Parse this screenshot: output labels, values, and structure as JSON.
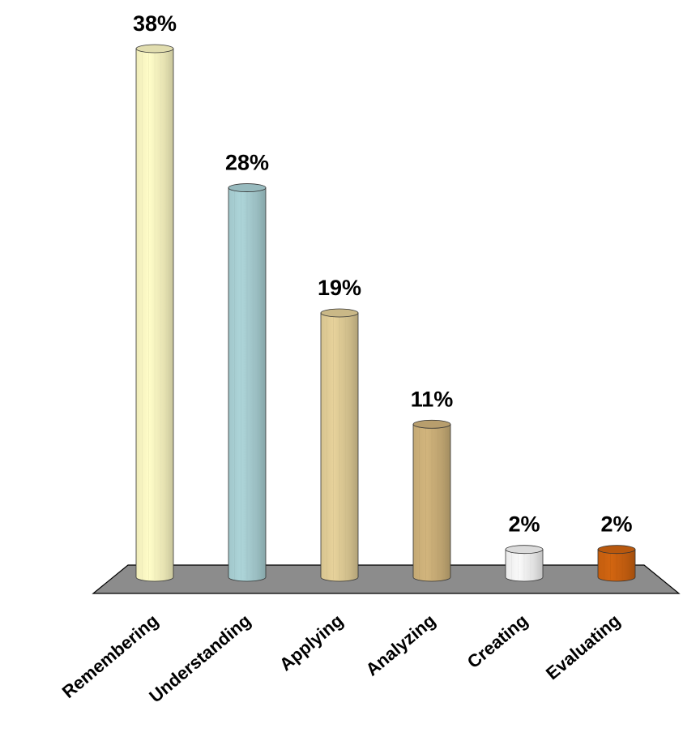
{
  "chart_data": {
    "type": "bar",
    "categories": [
      "Remembering",
      "Understanding",
      "Applying",
      "Analyzing",
      "Creating",
      "Evaluating"
    ],
    "values": [
      38,
      28,
      19,
      11,
      2,
      2
    ],
    "value_labels": [
      "38%",
      "28%",
      "19%",
      "11%",
      "2%",
      "2%"
    ],
    "ylim": [
      0,
      40
    ],
    "grid": false,
    "legend": "none",
    "colors": [
      "#FAF6C2",
      "#A8CFD3",
      "#E0CC96",
      "#CCB079",
      "#F3F3F3",
      "#CC6210"
    ],
    "floor_color": "#8C8C8C"
  }
}
